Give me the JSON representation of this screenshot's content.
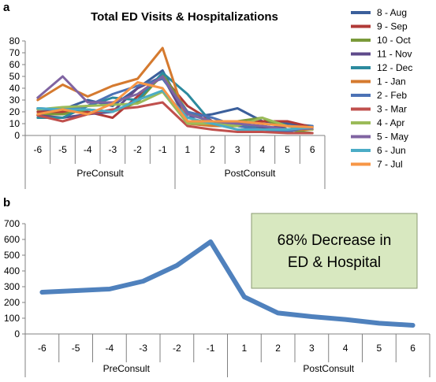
{
  "chart_data": [
    {
      "panel_label": "a",
      "type": "line",
      "title": "Total ED Visits & Hospitalizations",
      "xlabel": "",
      "ylabel": "",
      "ylim": [
        0,
        80
      ],
      "yticks": [
        0,
        10,
        20,
        30,
        40,
        50,
        60,
        70,
        80
      ],
      "categories": [
        "-6",
        "-5",
        "-4",
        "-3",
        "-2",
        "-1",
        "1",
        "2",
        "3",
        "4",
        "5",
        "6"
      ],
      "groups": [
        {
          "label": "PreConsult",
          "span": [
            0,
            5
          ]
        },
        {
          "label": "PostConsult",
          "span": [
            6,
            11
          ]
        }
      ],
      "grid": false,
      "legend_position": "right",
      "series": [
        {
          "name": "8 - Aug",
          "color": "#3b5f9b",
          "values": [
            23,
            22,
            30,
            25,
            40,
            55,
            15,
            18,
            23,
            12,
            10,
            8
          ]
        },
        {
          "name": "9 - Sep",
          "color": "#b03a37",
          "values": [
            20,
            20,
            20,
            15,
            33,
            50,
            25,
            12,
            10,
            12,
            12,
            7
          ]
        },
        {
          "name": "10 - Oct",
          "color": "#7a9a3a",
          "values": [
            18,
            18,
            22,
            20,
            28,
            52,
            20,
            10,
            12,
            15,
            5,
            2
          ]
        },
        {
          "name": "11 - Nov",
          "color": "#5e4a8a",
          "values": [
            17,
            15,
            18,
            20,
            40,
            50,
            12,
            10,
            8,
            6,
            8,
            5
          ]
        },
        {
          "name": "12 - Dec",
          "color": "#2c8a9e",
          "values": [
            15,
            15,
            25,
            32,
            30,
            53,
            35,
            10,
            8,
            8,
            5,
            8
          ]
        },
        {
          "name": "1 - Jan",
          "color": "#d57a2f",
          "values": [
            30,
            43,
            33,
            42,
            48,
            74,
            10,
            8,
            8,
            5,
            5,
            5
          ]
        },
        {
          "name": "2 - Feb",
          "color": "#4c72b5",
          "values": [
            22,
            22,
            25,
            35,
            42,
            48,
            20,
            15,
            8,
            5,
            3,
            8
          ]
        },
        {
          "name": "3 - Mar",
          "color": "#c0504d",
          "values": [
            17,
            12,
            18,
            22,
            24,
            28,
            8,
            5,
            3,
            3,
            2,
            2
          ]
        },
        {
          "name": "4 - Apr",
          "color": "#9bbb59",
          "values": [
            22,
            24,
            25,
            26,
            27,
            37,
            10,
            10,
            8,
            15,
            8,
            5
          ]
        },
        {
          "name": "5 - May",
          "color": "#8064a2",
          "values": [
            32,
            50,
            28,
            28,
            35,
            50,
            18,
            12,
            10,
            8,
            5,
            6
          ]
        },
        {
          "name": "6 - Jun",
          "color": "#4bacc6",
          "values": [
            23,
            22,
            22,
            20,
            30,
            38,
            15,
            10,
            5,
            5,
            5,
            7
          ]
        },
        {
          "name": "7 - Jul",
          "color": "#f79646",
          "values": [
            18,
            22,
            18,
            27,
            45,
            40,
            12,
            12,
            12,
            10,
            8,
            7
          ]
        }
      ]
    },
    {
      "panel_label": "b",
      "type": "line",
      "title": "",
      "xlabel": "",
      "ylabel": "",
      "ylim": [
        0,
        700
      ],
      "yticks": [
        0,
        100,
        200,
        300,
        400,
        500,
        600,
        700
      ],
      "categories": [
        "-6",
        "-5",
        "-4",
        "-3",
        "-2",
        "-1",
        "1",
        "2",
        "3",
        "4",
        "5",
        "6"
      ],
      "groups": [
        {
          "label": "PreConsult",
          "span": [
            0,
            5
          ]
        },
        {
          "label": "PostConsult",
          "span": [
            6,
            11
          ]
        }
      ],
      "grid": false,
      "series": [
        {
          "color": "#4f81bd",
          "values": [
            265,
            275,
            285,
            335,
            435,
            585,
            235,
            133,
            110,
            92,
            68,
            55
          ]
        }
      ],
      "annotation": {
        "text_line1": "68% Decrease in",
        "text_line2": "ED & Hospital",
        "fill": "#d8e8c0",
        "border": "#8a9a70"
      }
    }
  ]
}
